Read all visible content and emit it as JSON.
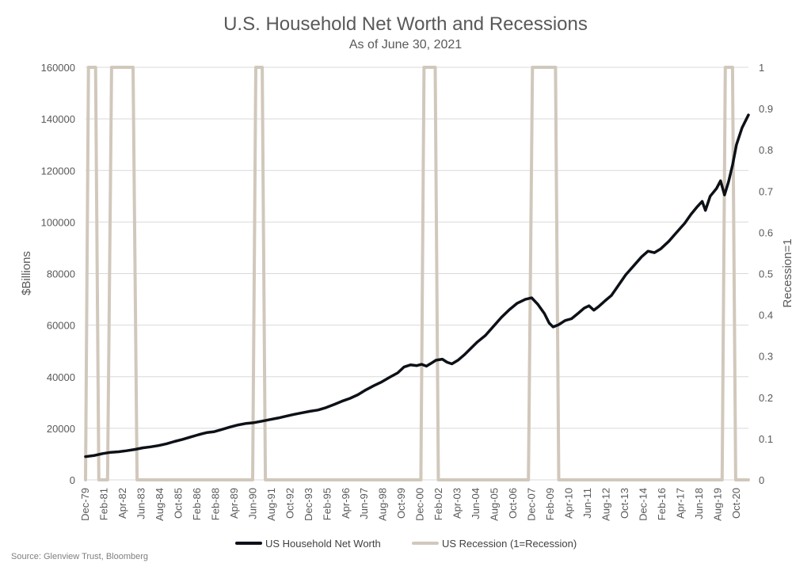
{
  "chart_data": {
    "type": "line",
    "title": "U.S. Household Net Worth and Recessions",
    "subtitle": "As of June 30, 2021",
    "ylabel_left": "$Billions",
    "ylabel_right": "Recession=1",
    "ylim_left": [
      0,
      160000
    ],
    "ylim_right": [
      0,
      1
    ],
    "yticks_left": [
      "0",
      "20000",
      "40000",
      "60000",
      "80000",
      "100000",
      "120000",
      "140000",
      "160000"
    ],
    "yticks_right": [
      "0",
      "0.1",
      "0.2",
      "0.3",
      "0.4",
      "0.5",
      "0.6",
      "0.7",
      "0.8",
      "0.9",
      "1"
    ],
    "x_start": 1979.917,
    "x_end": 2021.5,
    "xticks": [
      {
        "label": "Dec-79",
        "t": 1979.917
      },
      {
        "label": "Feb-81",
        "t": 1981.083
      },
      {
        "label": "Apr-82",
        "t": 1982.25
      },
      {
        "label": "Jun-83",
        "t": 1983.417
      },
      {
        "label": "Aug-84",
        "t": 1984.583
      },
      {
        "label": "Oct-85",
        "t": 1985.75
      },
      {
        "label": "Feb-86",
        "t": 1986.917
      },
      {
        "label": "Feb-88",
        "t": 1988.083
      },
      {
        "label": "Apr-89",
        "t": 1989.25
      },
      {
        "label": "Jun-90",
        "t": 1990.417
      },
      {
        "label": "Aug-91",
        "t": 1991.583
      },
      {
        "label": "Oct-92",
        "t": 1992.75
      },
      {
        "label": "Dec-93",
        "t": 1993.917
      },
      {
        "label": "Feb-95",
        "t": 1995.083
      },
      {
        "label": "Apr-96",
        "t": 1996.25
      },
      {
        "label": "Jun-97",
        "t": 1997.417
      },
      {
        "label": "Aug-98",
        "t": 1998.583
      },
      {
        "label": "Oct-99",
        "t": 1999.75
      },
      {
        "label": "Dec-00",
        "t": 2000.917
      },
      {
        "label": "Feb-02",
        "t": 2002.083
      },
      {
        "label": "Apr-03",
        "t": 2003.25
      },
      {
        "label": "Jun-04",
        "t": 2004.417
      },
      {
        "label": "Aug-05",
        "t": 2005.583
      },
      {
        "label": "Oct-06",
        "t": 2006.75
      },
      {
        "label": "Dec-07",
        "t": 2007.917
      },
      {
        "label": "Feb-09",
        "t": 2009.083
      },
      {
        "label": "Apr-10",
        "t": 2010.25
      },
      {
        "label": "Jun-11",
        "t": 2011.417
      },
      {
        "label": "Aug-12",
        "t": 2012.583
      },
      {
        "label": "Oct-13",
        "t": 2013.75
      },
      {
        "label": "Dec-14",
        "t": 2014.917
      },
      {
        "label": "Feb-16",
        "t": 2016.083
      },
      {
        "label": "Apr-17",
        "t": 2017.25
      },
      {
        "label": "Jun-18",
        "t": 2018.417
      },
      {
        "label": "Aug-19",
        "t": 2019.583
      },
      {
        "label": "Oct-20",
        "t": 2020.75
      }
    ],
    "series": [
      {
        "name": "US Household Net Worth",
        "axis": "left",
        "color": "#0d1117",
        "points": [
          [
            1979.917,
            9000
          ],
          [
            1980.5,
            9500
          ],
          [
            1981.0,
            10200
          ],
          [
            1981.5,
            10700
          ],
          [
            1982.0,
            10900
          ],
          [
            1982.5,
            11300
          ],
          [
            1983.0,
            11800
          ],
          [
            1983.5,
            12400
          ],
          [
            1984.0,
            12800
          ],
          [
            1984.5,
            13300
          ],
          [
            1985.0,
            14000
          ],
          [
            1985.5,
            14900
          ],
          [
            1986.0,
            15700
          ],
          [
            1986.5,
            16600
          ],
          [
            1987.0,
            17500
          ],
          [
            1987.5,
            18300
          ],
          [
            1988.0,
            18700
          ],
          [
            1988.5,
            19600
          ],
          [
            1989.0,
            20500
          ],
          [
            1989.5,
            21300
          ],
          [
            1990.0,
            21900
          ],
          [
            1990.5,
            22200
          ],
          [
            1991.0,
            22800
          ],
          [
            1991.5,
            23400
          ],
          [
            1992.0,
            24000
          ],
          [
            1992.5,
            24700
          ],
          [
            1993.0,
            25400
          ],
          [
            1993.5,
            26000
          ],
          [
            1994.0,
            26600
          ],
          [
            1994.5,
            27100
          ],
          [
            1995.0,
            28000
          ],
          [
            1995.5,
            29200
          ],
          [
            1996.0,
            30500
          ],
          [
            1996.5,
            31600
          ],
          [
            1997.0,
            33000
          ],
          [
            1997.5,
            34900
          ],
          [
            1998.0,
            36500
          ],
          [
            1998.5,
            38000
          ],
          [
            1999.0,
            39800
          ],
          [
            1999.5,
            41500
          ],
          [
            1999.9,
            43800
          ],
          [
            2000.3,
            44600
          ],
          [
            2000.7,
            44300
          ],
          [
            2001.0,
            44800
          ],
          [
            2001.3,
            44100
          ],
          [
            2001.6,
            45200
          ],
          [
            2001.9,
            46400
          ],
          [
            2002.3,
            46800
          ],
          [
            2002.6,
            45600
          ],
          [
            2002.9,
            45000
          ],
          [
            2003.3,
            46500
          ],
          [
            2003.7,
            48600
          ],
          [
            2004.0,
            50500
          ],
          [
            2004.5,
            53500
          ],
          [
            2005.0,
            56000
          ],
          [
            2005.5,
            59500
          ],
          [
            2006.0,
            63000
          ],
          [
            2006.5,
            66000
          ],
          [
            2007.0,
            68500
          ],
          [
            2007.5,
            70000
          ],
          [
            2007.9,
            70600
          ],
          [
            2008.3,
            68000
          ],
          [
            2008.7,
            64500
          ],
          [
            2009.0,
            60800
          ],
          [
            2009.25,
            59300
          ],
          [
            2009.6,
            60200
          ],
          [
            2010.0,
            61800
          ],
          [
            2010.4,
            62500
          ],
          [
            2010.8,
            64500
          ],
          [
            2011.2,
            66600
          ],
          [
            2011.5,
            67500
          ],
          [
            2011.8,
            65800
          ],
          [
            2012.1,
            67200
          ],
          [
            2012.5,
            69400
          ],
          [
            2012.9,
            71500
          ],
          [
            2013.3,
            75000
          ],
          [
            2013.8,
            79500
          ],
          [
            2014.3,
            83000
          ],
          [
            2014.8,
            86500
          ],
          [
            2015.2,
            88700
          ],
          [
            2015.6,
            88100
          ],
          [
            2016.0,
            89600
          ],
          [
            2016.5,
            92500
          ],
          [
            2017.0,
            96000
          ],
          [
            2017.5,
            99500
          ],
          [
            2017.9,
            103000
          ],
          [
            2018.3,
            106000
          ],
          [
            2018.6,
            108000
          ],
          [
            2018.8,
            104500
          ],
          [
            2019.1,
            110000
          ],
          [
            2019.5,
            113000
          ],
          [
            2019.75,
            116000
          ],
          [
            2020.0,
            110500
          ],
          [
            2020.25,
            115500
          ],
          [
            2020.5,
            122000
          ],
          [
            2020.75,
            130000
          ],
          [
            2021.1,
            136500
          ],
          [
            2021.5,
            141500
          ]
        ]
      },
      {
        "name": "US Recession (1=Recession)",
        "axis": "right",
        "color": "#d1c8bc",
        "points": [
          [
            1979.917,
            0
          ],
          [
            1980.1,
            1
          ],
          [
            1980.55,
            1
          ],
          [
            1980.75,
            0
          ],
          [
            1981.3,
            0
          ],
          [
            1981.55,
            1
          ],
          [
            1982.9,
            1
          ],
          [
            1983.15,
            0
          ],
          [
            1990.4,
            0
          ],
          [
            1990.6,
            1
          ],
          [
            1991.0,
            1
          ],
          [
            1991.2,
            0
          ],
          [
            2000.95,
            0
          ],
          [
            2001.15,
            1
          ],
          [
            2001.85,
            1
          ],
          [
            2002.05,
            0
          ],
          [
            2007.7,
            0
          ],
          [
            2007.95,
            1
          ],
          [
            2009.4,
            1
          ],
          [
            2009.6,
            0
          ],
          [
            2019.85,
            0
          ],
          [
            2020.05,
            1
          ],
          [
            2020.5,
            1
          ],
          [
            2020.7,
            0
          ],
          [
            2021.5,
            0
          ]
        ]
      }
    ],
    "legend": [
      {
        "label": "US Household Net Worth",
        "color": "#0d1117"
      },
      {
        "label": "US Recession (1=Recession)",
        "color": "#d1c8bc"
      }
    ],
    "source": "Source: Glenview Trust, Bloomberg"
  }
}
